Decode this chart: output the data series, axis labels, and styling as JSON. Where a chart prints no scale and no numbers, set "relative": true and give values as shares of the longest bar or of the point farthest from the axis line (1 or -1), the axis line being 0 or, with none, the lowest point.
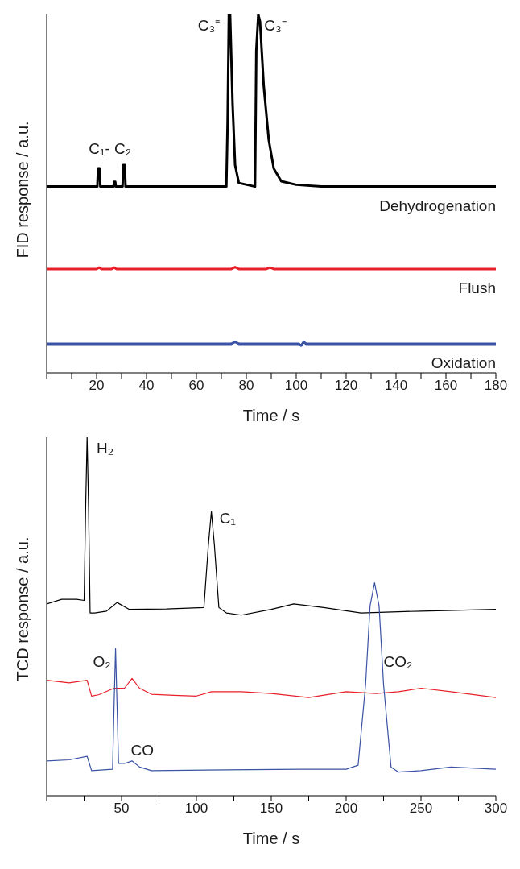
{
  "chart_data": [
    {
      "type": "line",
      "relative": true,
      "xlabel": "Time / s",
      "ylabel": "FID response / a.u.",
      "xlim": [
        0,
        180
      ],
      "xticks": [
        {
          "value": 0,
          "label": null
        },
        {
          "value": 10,
          "label": null
        },
        20,
        {
          "value": 30,
          "label": null
        },
        40,
        {
          "value": 50,
          "label": null
        },
        60,
        {
          "value": 70,
          "label": null
        },
        80,
        {
          "value": 90,
          "label": null
        },
        100,
        {
          "value": 110,
          "label": null
        },
        120,
        {
          "value": 130,
          "label": null
        },
        140,
        {
          "value": 150,
          "label": null
        },
        160,
        {
          "value": 170,
          "label": null
        },
        180
      ],
      "grid": false,
      "legend": false,
      "marker": "none",
      "line_style": "solid",
      "series": [
        {
          "name": "Dehydrogenation",
          "color": "#000000",
          "x": [
            0,
            20.3,
            20.6,
            21.2,
            21.5,
            26.8,
            27,
            27.5,
            27.7,
            30.4,
            30.7,
            31.3,
            31.6,
            72,
            72.5,
            73,
            73.5,
            74.5,
            75.5,
            77,
            83.5,
            84,
            84.8,
            85.5,
            87,
            89,
            91,
            94,
            100,
            110,
            180
          ],
          "values": [
            0.52,
            0.52,
            0.571,
            0.571,
            0.52,
            0.52,
            0.533,
            0.533,
            0.52,
            0.52,
            0.58,
            0.58,
            0.52,
            0.52,
            0.7,
            1.0,
            1.0,
            0.75,
            0.58,
            0.53,
            0.52,
            0.9,
            1.0,
            0.98,
            0.8,
            0.65,
            0.57,
            0.535,
            0.525,
            0.52,
            0.52
          ]
        },
        {
          "name": "Flush",
          "color": "#e8202a",
          "x": [
            0,
            20,
            21,
            22,
            26,
            27,
            28,
            74,
            75.5,
            77,
            88,
            89.5,
            91,
            180
          ],
          "values": [
            0.29,
            0.29,
            0.294,
            0.29,
            0.29,
            0.294,
            0.29,
            0.29,
            0.295,
            0.29,
            0.29,
            0.294,
            0.29,
            0.29
          ]
        },
        {
          "name": "Oxidation",
          "color": "#3a53a4",
          "x": [
            0,
            74,
            75.5,
            77,
            101,
            102,
            103,
            104,
            180
          ],
          "values": [
            0.081,
            0.081,
            0.086,
            0.081,
            0.081,
            0.076,
            0.086,
            0.081,
            0.081
          ]
        }
      ],
      "annotations": [
        "C₁- C₂",
        "C₃⁼",
        "C₃⁻"
      ]
    },
    {
      "type": "line",
      "relative": true,
      "xlabel": "Time / s",
      "ylabel": "TCD response / a.u.",
      "xlim": [
        0,
        300
      ],
      "xticks": [
        {
          "value": 0,
          "label": null
        },
        {
          "value": 25,
          "label": null
        },
        50,
        {
          "value": 75,
          "label": null
        },
        100,
        {
          "value": 125,
          "label": null
        },
        150,
        {
          "value": 175,
          "label": null
        },
        200,
        {
          "value": 225,
          "label": null
        },
        250,
        {
          "value": 275,
          "label": null
        },
        300
      ],
      "grid": false,
      "legend": false,
      "marker": "none",
      "line_style": "solid",
      "series": [
        {
          "color": "#000000",
          "x": [
            0,
            10,
            20,
            25,
            26,
            27,
            28,
            29,
            32,
            40,
            47,
            55,
            80,
            105,
            108,
            110,
            112,
            115,
            120,
            130,
            150,
            165,
            185,
            210,
            250,
            300
          ],
          "values": [
            0.535,
            0.548,
            0.548,
            0.545,
            0.8,
            1.0,
            0.8,
            0.51,
            0.51,
            0.515,
            0.539,
            0.52,
            0.521,
            0.525,
            0.7,
            0.793,
            0.7,
            0.525,
            0.51,
            0.504,
            0.52,
            0.535,
            0.525,
            0.51,
            0.515,
            0.52
          ]
        },
        {
          "color": "#e8202a",
          "x": [
            0,
            15,
            27,
            30,
            35,
            45,
            52,
            57,
            62,
            70,
            85,
            100,
            110,
            130,
            150,
            175,
            200,
            220,
            235,
            250,
            270,
            300
          ],
          "values": [
            0.322,
            0.315,
            0.322,
            0.278,
            0.282,
            0.3,
            0.3,
            0.327,
            0.3,
            0.283,
            0.28,
            0.278,
            0.29,
            0.29,
            0.285,
            0.274,
            0.29,
            0.285,
            0.29,
            0.3,
            0.29,
            0.274
          ]
        },
        {
          "color": "#3a53a4",
          "x": [
            0,
            15,
            27,
            30,
            44,
            45,
            46,
            47,
            48,
            52,
            57,
            62,
            70,
            120,
            170,
            200,
            208,
            213,
            216,
            219,
            222,
            225,
            230,
            235,
            250,
            270,
            300
          ],
          "values": [
            0.097,
            0.1,
            0.11,
            0.07,
            0.074,
            0.25,
            0.411,
            0.25,
            0.09,
            0.09,
            0.097,
            0.08,
            0.07,
            0.072,
            0.074,
            0.074,
            0.085,
            0.31,
            0.53,
            0.594,
            0.53,
            0.31,
            0.08,
            0.066,
            0.07,
            0.08,
            0.074
          ]
        }
      ],
      "annotations": [
        "H₂",
        "C₁",
        "O₂",
        "CO",
        "CO₂"
      ]
    }
  ]
}
